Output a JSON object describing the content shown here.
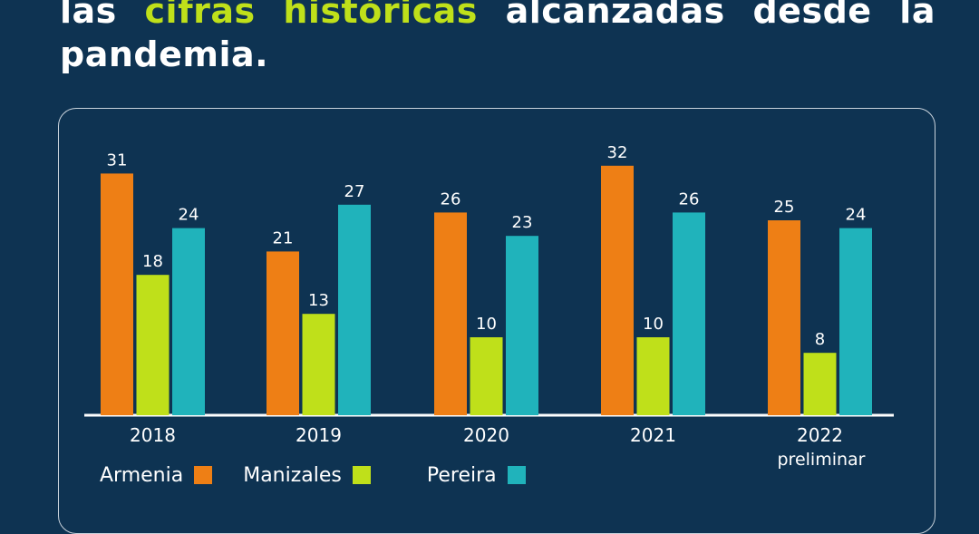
{
  "headline": {
    "words_line1": [
      "las",
      "cifras",
      "históricas",
      "alcanzadas",
      "desde",
      "la"
    ],
    "highlight_indices": [
      1,
      2
    ],
    "line2": "pandemia."
  },
  "colors": {
    "background": "#0e3352",
    "highlight": "#bfe01a",
    "armenia": "#ee7f15",
    "manizales": "#bfe01a",
    "pereira": "#20b3bb"
  },
  "chart_data": {
    "type": "bar",
    "categories": [
      "2018",
      "2019",
      "2020",
      "2021",
      "2022"
    ],
    "category_sublabels": [
      "",
      "",
      "",
      "",
      "preliminar"
    ],
    "series": [
      {
        "name": "Armenia",
        "values": [
          31,
          21,
          26,
          32,
          25
        ]
      },
      {
        "name": "Manizales",
        "values": [
          18,
          13,
          10,
          10,
          8
        ]
      },
      {
        "name": "Pereira",
        "values": [
          24,
          27,
          23,
          26,
          24
        ]
      }
    ],
    "ylim": [
      0,
      32
    ],
    "grid": false,
    "legend_position": "bottom-left",
    "data_labels": true
  }
}
